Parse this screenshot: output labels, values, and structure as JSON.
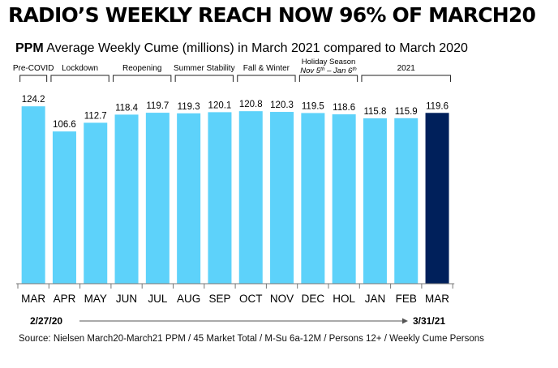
{
  "header": {
    "title": "RADIO’S WEEKLY REACH NOW 96% OF MARCH20",
    "subtitle_lead": "PPM",
    "subtitle_rest": " Average Weekly Cume (millions) in March 2021 compared to March 2020"
  },
  "timeline": {
    "start": "2/27/20",
    "end": "3/31/21"
  },
  "source": "Source:  Nielsen March20-March21   PPM / 45 Market Total / M-Su 6a-12M / Persons 12+ / Weekly Cume Persons",
  "colors": {
    "bar": "#5DD2FA",
    "highlight": "#00205B",
    "text": "#000000"
  },
  "chart_data": {
    "type": "bar",
    "categories": [
      "MAR",
      "APR",
      "MAY",
      "JUN",
      "JUL",
      "AUG",
      "SEP",
      "OCT",
      "NOV",
      "DEC",
      "HOL",
      "JAN",
      "FEB",
      "MAR"
    ],
    "values": [
      124.2,
      106.6,
      112.7,
      118.4,
      119.7,
      119.3,
      120.1,
      120.8,
      120.3,
      119.5,
      118.6,
      115.8,
      115.9,
      119.6
    ],
    "value_labels": [
      "124.2",
      "106.6",
      "112.7",
      "118.4",
      "119.7",
      "119.3",
      "120.1",
      "120.8",
      "120.3",
      "119.5",
      "118.6",
      "115.8",
      "115.9",
      "119.6"
    ],
    "highlight_index": 13,
    "ylim": [
      0,
      126
    ],
    "periods": [
      {
        "label": "Pre-COVID",
        "start": 0,
        "end": 0
      },
      {
        "label": "Lockdown",
        "start": 1,
        "end": 2
      },
      {
        "label": "Reopening",
        "start": 3,
        "end": 4
      },
      {
        "label": "Summer Stability",
        "start": 5,
        "end": 6
      },
      {
        "label": "Fall & Winter",
        "start": 7,
        "end": 8
      },
      {
        "label": "Holiday Season",
        "sublabel": "Nov 5th – Jan 6th",
        "start": 9,
        "end": 10
      },
      {
        "label": "2021",
        "start": 11,
        "end": 13
      }
    ]
  }
}
